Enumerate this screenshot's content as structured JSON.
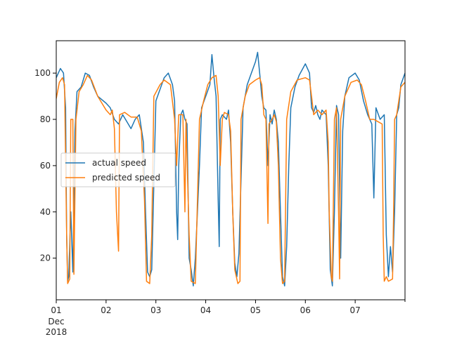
{
  "chart_data": {
    "type": "line",
    "title": "",
    "xlabel": "",
    "ylabel": "",
    "x_range": [
      "2018-12-01",
      "2018-12-08"
    ],
    "ylim": [
      2,
      114
    ],
    "x_ticks": [
      {
        "date": "2018-12-01",
        "label": "01",
        "sublabels": [
          "Dec",
          "2018"
        ]
      },
      {
        "date": "2018-12-02",
        "label": "02"
      },
      {
        "date": "2018-12-03",
        "label": "03"
      },
      {
        "date": "2018-12-04",
        "label": "04"
      },
      {
        "date": "2018-12-05",
        "label": "05"
      },
      {
        "date": "2018-12-06",
        "label": "06"
      },
      {
        "date": "2018-12-07",
        "label": "07"
      }
    ],
    "y_ticks": [
      20,
      40,
      60,
      80,
      100
    ],
    "grid": false,
    "legend_position": "center-left",
    "series": [
      {
        "name": "actual speed",
        "color": "#1f77b4",
        "points": [
          [
            "2018-12-01T00:00",
            98
          ],
          [
            "2018-12-01T02:00",
            102
          ],
          [
            "2018-12-01T03:30",
            100
          ],
          [
            "2018-12-01T04:30",
            85
          ],
          [
            "2018-12-01T05:00",
            30
          ],
          [
            "2018-12-01T05:30",
            10
          ],
          [
            "2018-12-01T06:00",
            12
          ],
          [
            "2018-12-01T07:00",
            40
          ],
          [
            "2018-12-01T08:00",
            14
          ],
          [
            "2018-12-01T09:00",
            75
          ],
          [
            "2018-12-01T10:00",
            92
          ],
          [
            "2018-12-01T12:00",
            94
          ],
          [
            "2018-12-01T14:00",
            100
          ],
          [
            "2018-12-01T16:00",
            99
          ],
          [
            "2018-12-01T18:00",
            94
          ],
          [
            "2018-12-01T20:00",
            90
          ],
          [
            "2018-12-02T00:00",
            87
          ],
          [
            "2018-12-02T02:00",
            85
          ],
          [
            "2018-12-02T04:00",
            80
          ],
          [
            "2018-12-02T06:00",
            78
          ],
          [
            "2018-12-02T08:00",
            82
          ],
          [
            "2018-12-02T10:00",
            79
          ],
          [
            "2018-12-02T12:00",
            76
          ],
          [
            "2018-12-02T14:00",
            80
          ],
          [
            "2018-12-02T16:00",
            82
          ],
          [
            "2018-12-02T18:00",
            70
          ],
          [
            "2018-12-02T19:00",
            40
          ],
          [
            "2018-12-02T20:00",
            14
          ],
          [
            "2018-12-02T21:00",
            12
          ],
          [
            "2018-12-02T22:00",
            15
          ],
          [
            "2018-12-03T00:00",
            88
          ],
          [
            "2018-12-03T02:00",
            93
          ],
          [
            "2018-12-03T04:00",
            98
          ],
          [
            "2018-12-03T06:00",
            100
          ],
          [
            "2018-12-03T08:00",
            95
          ],
          [
            "2018-12-03T09:00",
            88
          ],
          [
            "2018-12-03T10:00",
            40
          ],
          [
            "2018-12-03T10:30",
            28
          ],
          [
            "2018-12-03T11:00",
            60
          ],
          [
            "2018-12-03T12:00",
            82
          ],
          [
            "2018-12-03T13:00",
            84
          ],
          [
            "2018-12-03T14:00",
            80
          ],
          [
            "2018-12-03T15:00",
            78
          ],
          [
            "2018-12-03T16:00",
            20
          ],
          [
            "2018-12-03T17:00",
            15
          ],
          [
            "2018-12-03T18:00",
            8
          ],
          [
            "2018-12-03T19:00",
            20
          ],
          [
            "2018-12-03T20:00",
            40
          ],
          [
            "2018-12-03T21:00",
            60
          ],
          [
            "2018-12-03T22:00",
            85
          ],
          [
            "2018-12-04T00:00",
            90
          ],
          [
            "2018-12-04T02:00",
            95
          ],
          [
            "2018-12-04T03:00",
            108
          ],
          [
            "2018-12-04T04:00",
            98
          ],
          [
            "2018-12-04T05:00",
            90
          ],
          [
            "2018-12-04T06:00",
            45
          ],
          [
            "2018-12-04T06:30",
            25
          ],
          [
            "2018-12-04T07:00",
            80
          ],
          [
            "2018-12-04T08:00",
            82
          ],
          [
            "2018-12-04T10:00",
            80
          ],
          [
            "2018-12-04T11:00",
            84
          ],
          [
            "2018-12-04T12:00",
            70
          ],
          [
            "2018-12-04T13:00",
            40
          ],
          [
            "2018-12-04T14:00",
            18
          ],
          [
            "2018-12-04T15:00",
            12
          ],
          [
            "2018-12-04T16:00",
            22
          ],
          [
            "2018-12-04T18:00",
            85
          ],
          [
            "2018-12-04T20:00",
            95
          ],
          [
            "2018-12-04T22:00",
            100
          ],
          [
            "2018-12-05T00:00",
            105
          ],
          [
            "2018-12-05T01:00",
            109
          ],
          [
            "2018-12-05T02:00",
            100
          ],
          [
            "2018-12-05T03:00",
            90
          ],
          [
            "2018-12-05T04:00",
            85
          ],
          [
            "2018-12-05T05:00",
            84
          ],
          [
            "2018-12-05T06:00",
            60
          ],
          [
            "2018-12-05T07:00",
            82
          ],
          [
            "2018-12-05T08:00",
            78
          ],
          [
            "2018-12-05T09:00",
            84
          ],
          [
            "2018-12-05T10:00",
            80
          ],
          [
            "2018-12-05T11:00",
            70
          ],
          [
            "2018-12-05T12:00",
            40
          ],
          [
            "2018-12-05T13:00",
            12
          ],
          [
            "2018-12-05T14:00",
            8
          ],
          [
            "2018-12-05T15:00",
            25
          ],
          [
            "2018-12-05T16:00",
            60
          ],
          [
            "2018-12-05T17:00",
            85
          ],
          [
            "2018-12-05T19:00",
            94
          ],
          [
            "2018-12-05T21:00",
            99
          ],
          [
            "2018-12-06T00:00",
            104
          ],
          [
            "2018-12-06T02:00",
            100
          ],
          [
            "2018-12-06T03:00",
            85
          ],
          [
            "2018-12-06T04:00",
            83
          ],
          [
            "2018-12-06T05:00",
            86
          ],
          [
            "2018-12-06T06:00",
            82
          ],
          [
            "2018-12-06T07:00",
            80
          ],
          [
            "2018-12-06T08:00",
            84
          ],
          [
            "2018-12-06T10:00",
            82
          ],
          [
            "2018-12-06T11:00",
            60
          ],
          [
            "2018-12-06T12:00",
            15
          ],
          [
            "2018-12-06T13:00",
            8
          ],
          [
            "2018-12-06T14:00",
            40
          ],
          [
            "2018-12-06T15:00",
            86
          ],
          [
            "2018-12-06T16:00",
            82
          ],
          [
            "2018-12-06T17:00",
            20
          ],
          [
            "2018-12-06T18:00",
            75
          ],
          [
            "2018-12-06T19:00",
            90
          ],
          [
            "2018-12-06T21:00",
            98
          ],
          [
            "2018-12-07T00:00",
            100
          ],
          [
            "2018-12-07T02:00",
            97
          ],
          [
            "2018-12-07T04:00",
            88
          ],
          [
            "2018-12-07T06:00",
            82
          ],
          [
            "2018-12-07T08:00",
            78
          ],
          [
            "2018-12-07T09:00",
            46
          ],
          [
            "2018-12-07T10:00",
            85
          ],
          [
            "2018-12-07T12:00",
            80
          ],
          [
            "2018-12-07T14:00",
            82
          ],
          [
            "2018-12-07T15:00",
            30
          ],
          [
            "2018-12-07T16:00",
            12
          ],
          [
            "2018-12-07T17:00",
            25
          ],
          [
            "2018-12-07T18:00",
            14
          ],
          [
            "2018-12-07T19:00",
            40
          ],
          [
            "2018-12-07T20:00",
            82
          ],
          [
            "2018-12-07T21:00",
            85
          ],
          [
            "2018-12-07T22:00",
            95
          ],
          [
            "2018-12-08T00:00",
            100
          ]
        ]
      },
      {
        "name": "predicted speed",
        "color": "#ff7f0e",
        "points": [
          [
            "2018-12-01T00:00",
            89
          ],
          [
            "2018-12-01T01:30",
            96
          ],
          [
            "2018-12-01T03:00",
            98
          ],
          [
            "2018-12-01T04:00",
            95
          ],
          [
            "2018-12-01T05:00",
            30
          ],
          [
            "2018-12-01T05:30",
            9
          ],
          [
            "2018-12-01T06:30",
            11
          ],
          [
            "2018-12-01T07:00",
            80
          ],
          [
            "2018-12-01T08:00",
            80
          ],
          [
            "2018-12-01T08:30",
            13
          ],
          [
            "2018-12-01T09:30",
            80
          ],
          [
            "2018-12-01T11:00",
            92
          ],
          [
            "2018-12-01T13:00",
            95
          ],
          [
            "2018-12-01T15:00",
            99
          ],
          [
            "2018-12-01T17:00",
            97
          ],
          [
            "2018-12-01T20:00",
            90
          ],
          [
            "2018-12-02T00:00",
            84
          ],
          [
            "2018-12-02T02:00",
            82
          ],
          [
            "2018-12-02T03:00",
            84
          ],
          [
            "2018-12-02T04:00",
            76
          ],
          [
            "2018-12-02T05:00",
            40
          ],
          [
            "2018-12-02T06:00",
            23
          ],
          [
            "2018-12-02T06:30",
            82
          ],
          [
            "2018-12-02T09:00",
            83
          ],
          [
            "2018-12-02T12:00",
            81
          ],
          [
            "2018-12-02T15:00",
            81
          ],
          [
            "2018-12-02T17:00",
            75
          ],
          [
            "2018-12-02T18:30",
            45
          ],
          [
            "2018-12-02T19:30",
            10
          ],
          [
            "2018-12-02T21:00",
            9
          ],
          [
            "2018-12-02T22:00",
            30
          ],
          [
            "2018-12-02T23:00",
            90
          ],
          [
            "2018-12-03T02:00",
            95
          ],
          [
            "2018-12-03T04:00",
            97
          ],
          [
            "2018-12-03T07:00",
            95
          ],
          [
            "2018-12-03T09:00",
            80
          ],
          [
            "2018-12-03T10:00",
            60
          ],
          [
            "2018-12-03T11:00",
            82
          ],
          [
            "2018-12-03T13:00",
            82
          ],
          [
            "2018-12-03T14:00",
            40
          ],
          [
            "2018-12-03T14:30",
            80
          ],
          [
            "2018-12-03T16:00",
            30
          ],
          [
            "2018-12-03T17:00",
            10
          ],
          [
            "2018-12-03T19:00",
            9
          ],
          [
            "2018-12-03T20:00",
            45
          ],
          [
            "2018-12-03T21:00",
            80
          ],
          [
            "2018-12-03T23:00",
            88
          ],
          [
            "2018-12-04T01:00",
            95
          ],
          [
            "2018-12-04T03:00",
            98
          ],
          [
            "2018-12-04T05:00",
            99
          ],
          [
            "2018-12-04T06:00",
            90
          ],
          [
            "2018-12-04T06:30",
            75
          ],
          [
            "2018-12-04T07:00",
            60
          ],
          [
            "2018-12-04T08:00",
            80
          ],
          [
            "2018-12-04T09:00",
            83
          ],
          [
            "2018-12-04T11:00",
            82
          ],
          [
            "2018-12-04T12:00",
            75
          ],
          [
            "2018-12-04T13:00",
            40
          ],
          [
            "2018-12-04T14:00",
            15
          ],
          [
            "2018-12-04T15:30",
            9
          ],
          [
            "2018-12-04T16:30",
            10
          ],
          [
            "2018-12-04T17:00",
            80
          ],
          [
            "2018-12-04T19:00",
            90
          ],
          [
            "2018-12-04T21:00",
            95
          ],
          [
            "2018-12-05T00:00",
            97
          ],
          [
            "2018-12-05T02:00",
            98
          ],
          [
            "2018-12-05T03:00",
            95
          ],
          [
            "2018-12-05T04:00",
            82
          ],
          [
            "2018-12-05T05:00",
            80
          ],
          [
            "2018-12-05T06:00",
            35
          ],
          [
            "2018-12-05T06:30",
            78
          ],
          [
            "2018-12-05T08:00",
            80
          ],
          [
            "2018-12-05T09:00",
            82
          ],
          [
            "2018-12-05T10:00",
            79
          ],
          [
            "2018-12-05T11:00",
            60
          ],
          [
            "2018-12-05T12:00",
            20
          ],
          [
            "2018-12-05T13:00",
            9
          ],
          [
            "2018-12-05T14:00",
            10
          ],
          [
            "2018-12-05T15:00",
            80
          ],
          [
            "2018-12-05T17:00",
            92
          ],
          [
            "2018-12-05T20:00",
            97
          ],
          [
            "2018-12-06T00:00",
            98
          ],
          [
            "2018-12-06T02:00",
            97
          ],
          [
            "2018-12-06T03:00",
            90
          ],
          [
            "2018-12-06T04:00",
            82
          ],
          [
            "2018-12-06T06:00",
            84
          ],
          [
            "2018-12-06T08:00",
            82
          ],
          [
            "2018-12-06T10:00",
            84
          ],
          [
            "2018-12-06T11:00",
            70
          ],
          [
            "2018-12-06T11:30",
            40
          ],
          [
            "2018-12-06T12:30",
            12
          ],
          [
            "2018-12-06T13:00",
            10
          ],
          [
            "2018-12-06T14:00",
            80
          ],
          [
            "2018-12-06T15:00",
            85
          ],
          [
            "2018-12-06T16:00",
            40
          ],
          [
            "2018-12-06T16:30",
            11
          ],
          [
            "2018-12-06T17:00",
            80
          ],
          [
            "2018-12-06T19:00",
            90
          ],
          [
            "2018-12-06T22:00",
            96
          ],
          [
            "2018-12-07T01:00",
            97
          ],
          [
            "2018-12-07T03:00",
            95
          ],
          [
            "2018-12-07T05:00",
            88
          ],
          [
            "2018-12-07T07:00",
            80
          ],
          [
            "2018-12-07T09:00",
            80
          ],
          [
            "2018-12-07T11:00",
            79
          ],
          [
            "2018-12-07T13:00",
            78
          ],
          [
            "2018-12-07T13:30",
            30
          ],
          [
            "2018-12-07T14:00",
            10
          ],
          [
            "2018-12-07T15:00",
            12
          ],
          [
            "2018-12-07T16:00",
            10
          ],
          [
            "2018-12-07T18:00",
            11
          ],
          [
            "2018-12-07T18:30",
            40
          ],
          [
            "2018-12-07T19:00",
            80
          ],
          [
            "2018-12-07T20:00",
            82
          ],
          [
            "2018-12-07T22:00",
            94
          ],
          [
            "2018-12-08T00:00",
            96
          ]
        ]
      }
    ]
  }
}
